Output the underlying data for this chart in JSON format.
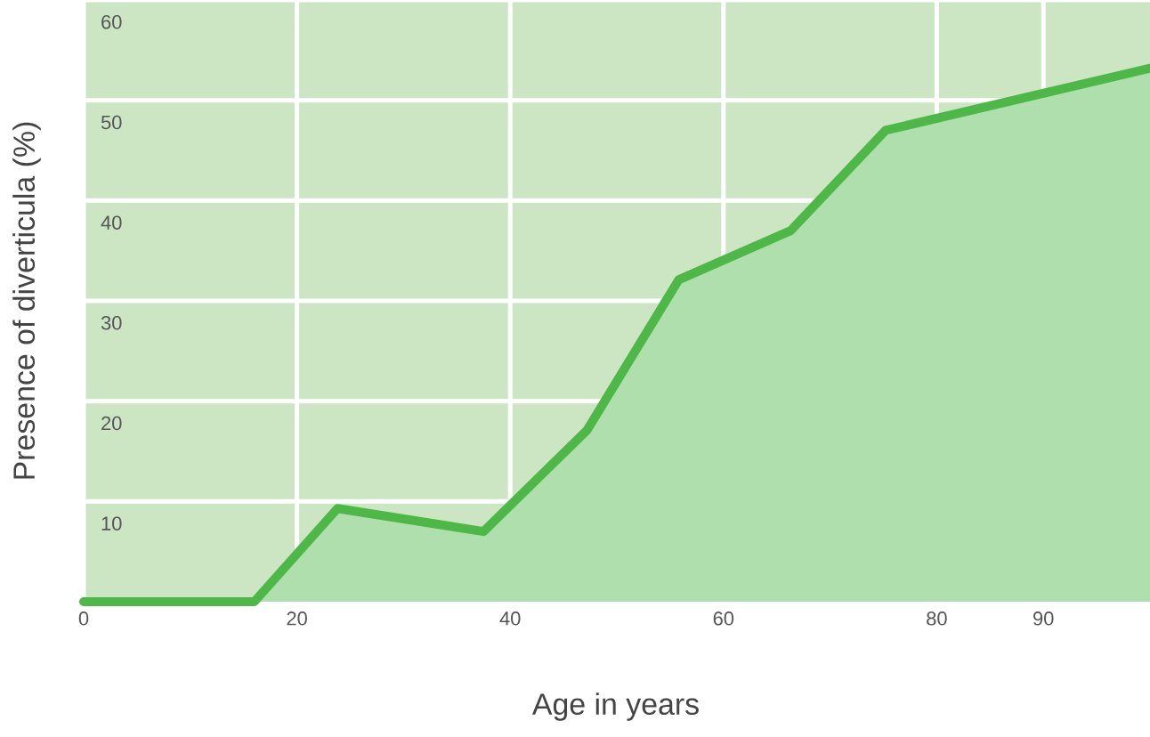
{
  "chart_data": {
    "type": "area",
    "xlabel": "Age in years",
    "ylabel": "Presence of diverticula (%)",
    "x": [
      0,
      16,
      23.8,
      37.5,
      47.2,
      55.8,
      66.3,
      75.2,
      100
    ],
    "series": [
      {
        "color": "#4db848",
        "values": [
          0,
          0,
          9.3,
          7,
          17.1,
          32.1,
          37,
          47,
          53.2
        ]
      }
    ],
    "xlim": [
      0,
      100
    ],
    "ylim": [
      0,
      60
    ],
    "xticks": [
      0,
      20,
      40,
      60,
      80,
      90
    ],
    "yticks": [
      10,
      20,
      30,
      40,
      50,
      60
    ],
    "grid": true
  }
}
